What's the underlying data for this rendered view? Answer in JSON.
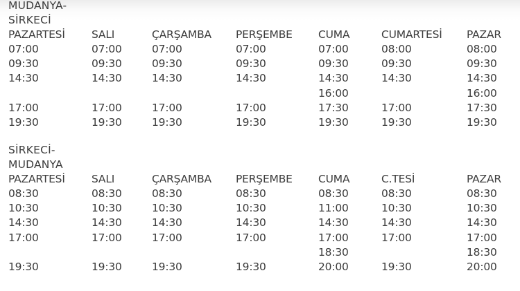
{
  "sections": [
    {
      "title_lines": [
        "MUDANYA-",
        "SİRKECİ"
      ],
      "headers": [
        "PAZARTESİ",
        "SALI",
        "ÇARŞAMBA",
        "PERŞEMBE",
        "CUMA",
        "CUMARTESİ",
        "PAZAR"
      ],
      "rows": [
        [
          "07:00",
          "07:00",
          "07:00",
          "07:00",
          "07:00",
          "08:00",
          "08:00"
        ],
        [
          "09:30",
          "09:30",
          "09:30",
          "09:30",
          "09:30",
          "09:30",
          "09:30"
        ],
        [
          "14:30",
          "14:30",
          "14:30",
          "14:30",
          "14:30",
          "14:30",
          "14:30"
        ],
        [
          "",
          "",
          "",
          "",
          "16:00",
          "",
          "16:00"
        ],
        [
          "17:00",
          "17:00",
          "17:00",
          "17:00",
          "17:30",
          "17:00",
          "17:30"
        ],
        [
          "19:30",
          "19:30",
          "19:30",
          "19:30",
          "19:30",
          "19:30",
          "19:30"
        ]
      ]
    },
    {
      "title_lines": [
        "SİRKECİ-",
        "MUDANYA"
      ],
      "headers": [
        "PAZARTESİ",
        "SALI",
        "ÇARŞAMBA",
        "PERŞEMBE",
        "CUMA",
        "C.TESİ",
        "PAZAR"
      ],
      "rows": [
        [
          "08:30",
          "08:30",
          "08:30",
          "08:30",
          "08:30",
          "08:30",
          "08:30"
        ],
        [
          "10:30",
          "10:30",
          "10:30",
          "10:30",
          "11:00",
          "10:30",
          "10:30"
        ],
        [
          "14:30",
          "14:30",
          "14:30",
          "14:30",
          "14:30",
          "14:30",
          "14:30"
        ],
        [
          "17:00",
          "17:00",
          "17:00",
          "17:00",
          "17:00",
          "17:00",
          "17:00"
        ],
        [
          "",
          "",
          "",
          "",
          "18:30",
          "",
          "18:30"
        ],
        [
          "19:30",
          "19:30",
          "19:30",
          "19:30",
          "20:00",
          "19:30",
          "20:00"
        ]
      ]
    }
  ]
}
